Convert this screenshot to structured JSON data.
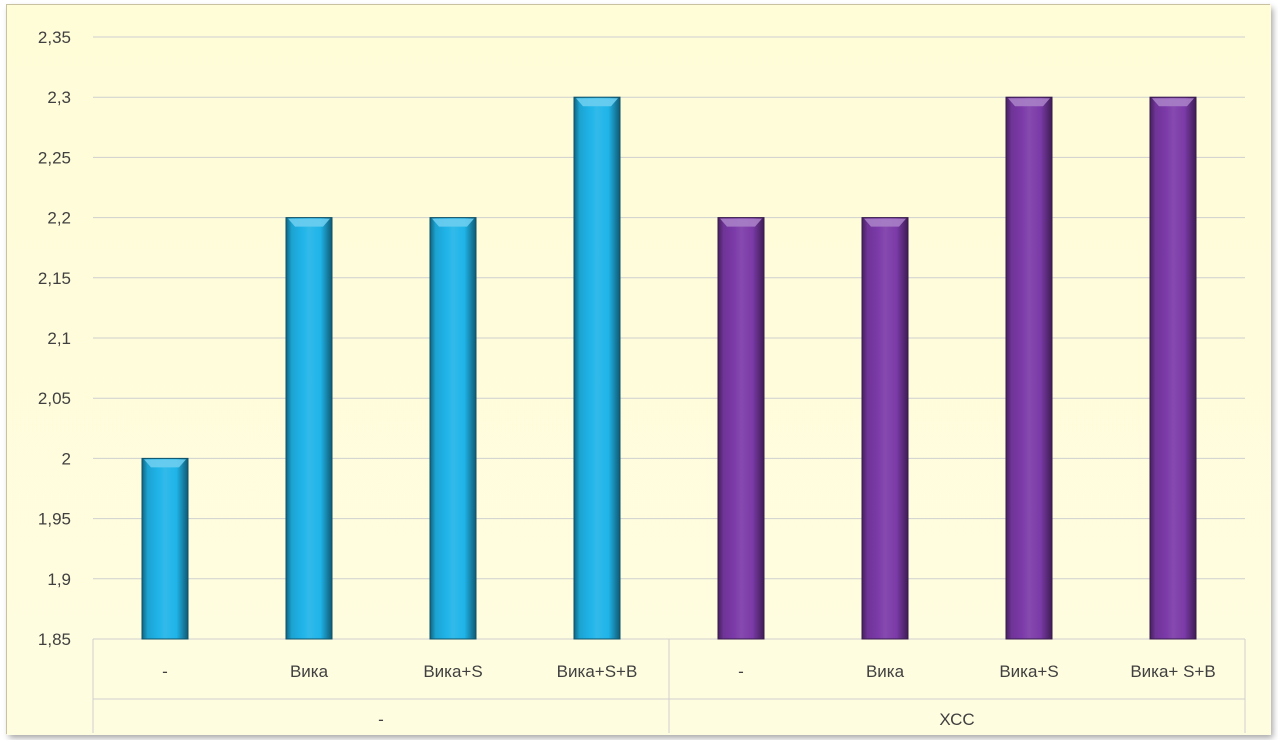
{
  "chart_data": {
    "type": "bar",
    "ylim": [
      1.85,
      2.35
    ],
    "yticks": [
      "1,85",
      "1,9",
      "1,95",
      "2",
      "2,05",
      "2,1",
      "2,15",
      "2,2",
      "2,25",
      "2,3",
      "2,35"
    ],
    "grid": true,
    "legend": "none",
    "background_color": "#fffcd8",
    "groups": [
      {
        "label": "-",
        "color": "#1fb4e8",
        "categories": [
          "-",
          "Вика",
          "Вика+S",
          "Вика+S+B"
        ],
        "values": [
          2.0,
          2.2,
          2.2,
          2.3
        ]
      },
      {
        "label": "ХСС",
        "color": "#7b3aa8",
        "categories": [
          "-",
          "Вика",
          "Вика+S",
          "Вика+ S+B"
        ],
        "values": [
          2.2,
          2.2,
          2.3,
          2.3
        ]
      }
    ]
  }
}
